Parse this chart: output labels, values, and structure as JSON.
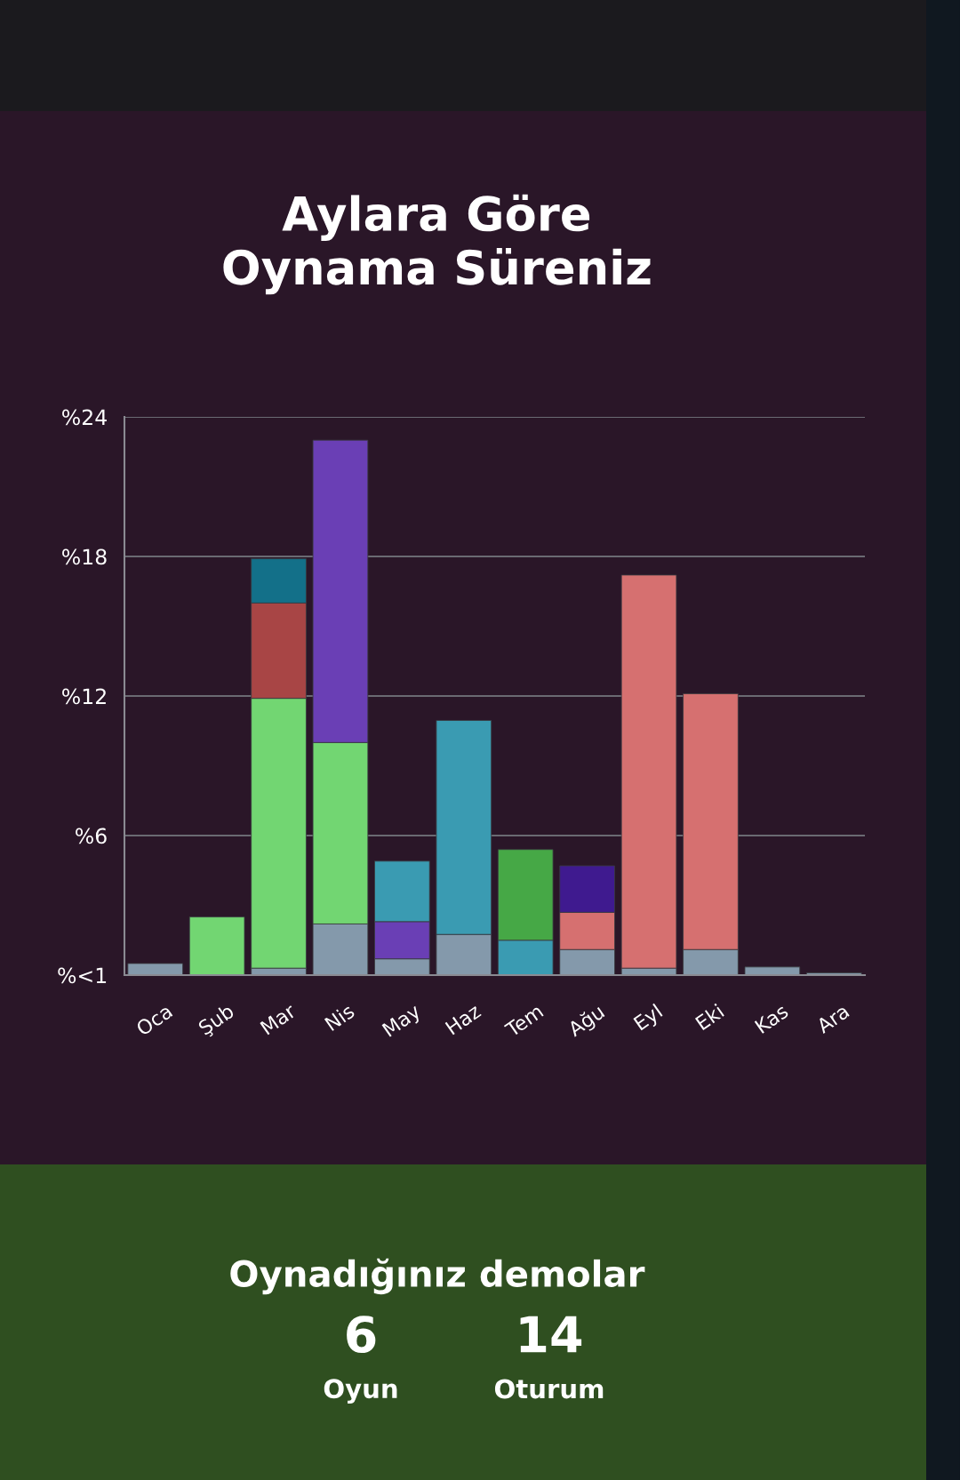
{
  "chart_data": [
    {
      "type": "bar",
      "title": "Aylara Göre Oynama Süreniz",
      "stacked": true,
      "categories": [
        "Oca",
        "Şub",
        "Mar",
        "Nis",
        "May",
        "Haz",
        "Tem",
        "Ağu",
        "Eyl",
        "Eki",
        "Kas",
        "Ara"
      ],
      "series": [
        {
          "color": "#8499ab",
          "values": [
            0.5,
            null,
            0.3,
            2.2,
            0.7,
            1.75,
            null,
            1.1,
            0.3,
            1.1,
            0.35,
            0.1
          ]
        },
        {
          "color": "#72d672",
          "values": [
            null,
            2.5,
            11.6,
            7.8,
            null,
            null,
            null,
            null,
            null,
            null,
            null,
            null
          ]
        },
        {
          "color": "#a84545",
          "values": [
            null,
            null,
            4.1,
            null,
            null,
            null,
            null,
            null,
            null,
            null,
            null,
            null
          ]
        },
        {
          "color": "#6a3fb5",
          "values": [
            null,
            null,
            null,
            13.0,
            1.6,
            null,
            null,
            null,
            null,
            null,
            null,
            null
          ]
        },
        {
          "color": "#3a9bb2",
          "values": [
            null,
            null,
            null,
            null,
            2.6,
            9.2,
            1.5,
            null,
            null,
            null,
            null,
            null
          ]
        },
        {
          "color": "#46a846",
          "values": [
            null,
            null,
            null,
            null,
            null,
            null,
            3.9,
            null,
            null,
            null,
            null,
            null
          ]
        },
        {
          "color": "#d67070",
          "values": [
            null,
            null,
            null,
            null,
            null,
            null,
            null,
            1.6,
            16.9,
            11.0,
            null,
            null
          ]
        },
        {
          "color": "#3f1a8f",
          "values": [
            null,
            null,
            null,
            null,
            null,
            null,
            null,
            2.0,
            null,
            null,
            null,
            null
          ]
        },
        {
          "color": "#137089",
          "values": [
            null,
            null,
            1.9,
            null,
            null,
            null,
            null,
            null,
            null,
            null,
            null,
            null
          ]
        }
      ],
      "ylim": [
        0,
        24
      ],
      "yticks": [
        {
          "value": 0,
          "label": "%<1"
        },
        {
          "value": 6,
          "label": "%6"
        },
        {
          "value": 12,
          "label": "%12"
        },
        {
          "value": 18,
          "label": "%18"
        },
        {
          "value": 24,
          "label": "%24"
        }
      ],
      "grid": "y",
      "legend": false
    },
    {
      "type": "other",
      "title": "Oynadığınız demolar",
      "annotations": [
        "6",
        "Oyun",
        "14",
        "Oturum"
      ]
    }
  ]
}
